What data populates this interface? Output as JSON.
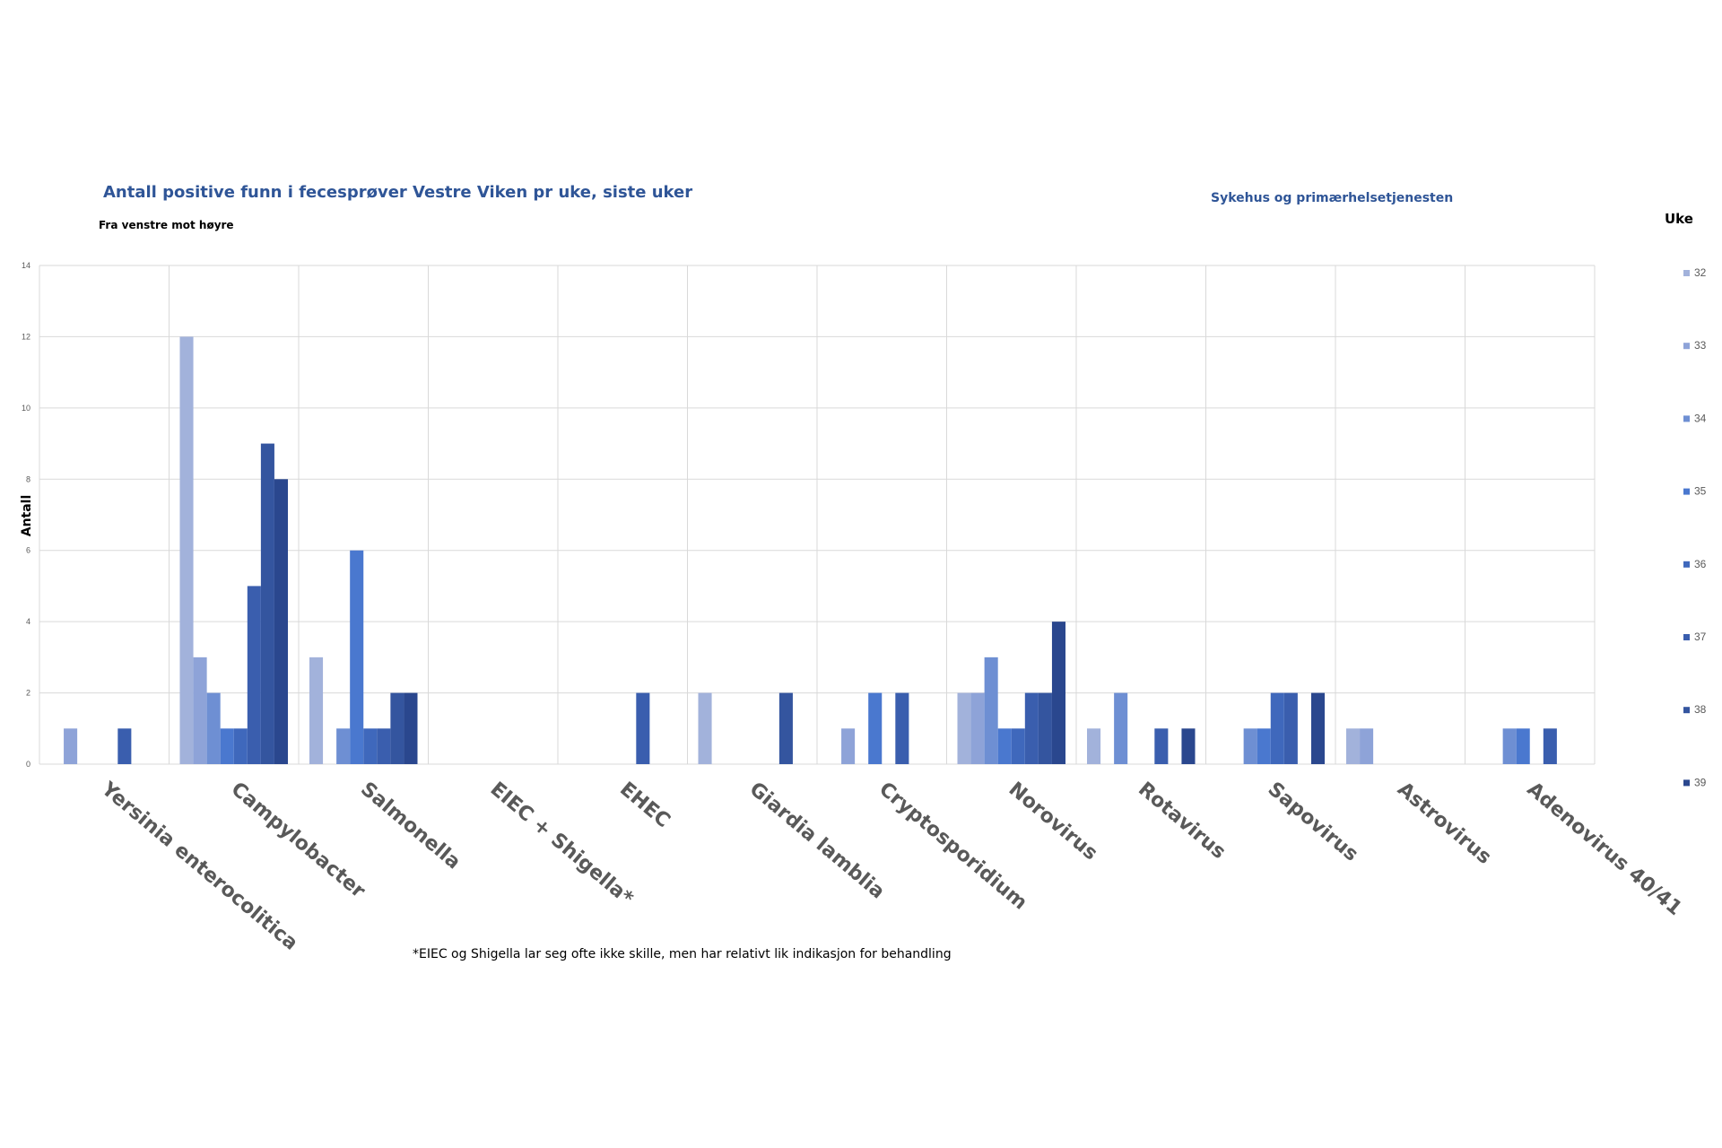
{
  "colors": {
    "title": "#2F5597",
    "grid": "#D9D9D9",
    "text": "#595959",
    "series": [
      "#A2B2DB",
      "#8EA3D8",
      "#6E8FD3",
      "#4A78CF",
      "#3F68BC",
      "#3A5EAE",
      "#34559F",
      "#2A478E"
    ]
  },
  "chart_data": {
    "type": "bar",
    "title": "Antall positive funn i fecesprøver Vestre Viken pr uke, siste uker",
    "subtitle": "Fra venstre mot høyre",
    "right_title": "Sykehus og primærhelsetjenesten",
    "ylabel": "Antall",
    "xlabel": "",
    "ylim": [
      0,
      14
    ],
    "yticks": [
      0,
      2,
      4,
      6,
      8,
      10,
      12,
      14
    ],
    "grid": true,
    "legend_title": "Uke",
    "legend_position": "right",
    "categories": [
      "Yersinia enterocolitica",
      "Campylobacter",
      "Salmonella",
      "EIEC + Shigella*",
      "EHEC",
      "Giardia lamblia",
      "Cryptosporidium",
      "Norovirus",
      "Rotavirus",
      "Sapovirus",
      "Astrovirus",
      "Adenovirus 40/41"
    ],
    "series": [
      {
        "name": "32",
        "values": [
          0,
          12,
          3,
          0,
          0,
          2,
          0,
          2,
          1,
          0,
          1,
          0
        ]
      },
      {
        "name": "33",
        "values": [
          1,
          3,
          0,
          0,
          0,
          0,
          1,
          2,
          0,
          0,
          1,
          0
        ]
      },
      {
        "name": "34",
        "values": [
          0,
          2,
          1,
          0,
          0,
          0,
          0,
          3,
          2,
          1,
          0,
          1
        ]
      },
      {
        "name": "35",
        "values": [
          0,
          1,
          6,
          0,
          0,
          0,
          2,
          1,
          0,
          1,
          0,
          1
        ]
      },
      {
        "name": "36",
        "values": [
          0,
          1,
          1,
          0,
          0,
          0,
          0,
          1,
          0,
          2,
          0,
          0
        ]
      },
      {
        "name": "37",
        "values": [
          1,
          5,
          1,
          0,
          2,
          0,
          2,
          2,
          1,
          2,
          0,
          1
        ]
      },
      {
        "name": "38",
        "values": [
          0,
          9,
          2,
          0,
          0,
          2,
          0,
          2,
          0,
          0,
          0,
          0
        ]
      },
      {
        "name": "39",
        "values": [
          0,
          8,
          2,
          0,
          0,
          0,
          0,
          4,
          1,
          2,
          0,
          0
        ]
      }
    ]
  },
  "footnote": "*EIEC og Shigella lar seg ofte ikke skille, men har relativt lik indikasjon for behandling"
}
